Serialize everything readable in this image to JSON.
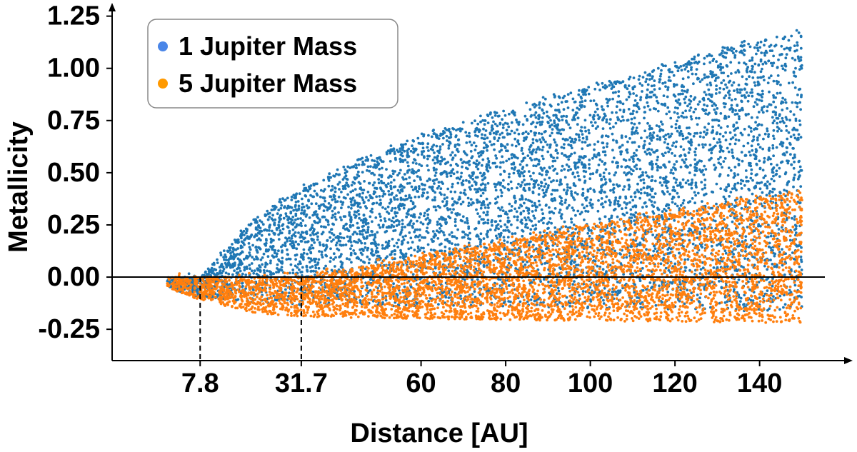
{
  "chart_data": {
    "type": "scatter",
    "title": "",
    "xlabel": "Distance [AU]",
    "ylabel": "Metallicity",
    "xlim": [
      -13,
      162
    ],
    "ylim": [
      -0.4,
      1.3
    ],
    "x_ticks": [
      {
        "value": 7.8,
        "label": "7.8"
      },
      {
        "value": 31.7,
        "label": "31.7"
      },
      {
        "value": 60,
        "label": "60"
      },
      {
        "value": 80,
        "label": "80"
      },
      {
        "value": 100,
        "label": "100"
      },
      {
        "value": 120,
        "label": "120"
      },
      {
        "value": 140,
        "label": "140"
      }
    ],
    "y_ticks": [
      {
        "value": 1.25,
        "label": "1.25"
      },
      {
        "value": 1.0,
        "label": "1.00"
      },
      {
        "value": 0.75,
        "label": "0.75"
      },
      {
        "value": 0.5,
        "label": "0.50"
      },
      {
        "value": 0.25,
        "label": "0.25"
      },
      {
        "value": 0.0,
        "label": "0.00"
      },
      {
        "value": -0.25,
        "label": "-0.25"
      }
    ],
    "reference_line_y": 0,
    "vertical_markers": [
      7.8,
      31.7
    ],
    "x_range": [
      0,
      150
    ],
    "legend": {
      "position": "top-left",
      "entries": [
        "1 Jupiter Mass",
        "5 Jupiter Mass"
      ]
    },
    "series": [
      {
        "name": "1 Jupiter Mass",
        "color": "#1f77b4",
        "legend_color": "#4a86e8",
        "zero_crossing": 7.8,
        "upper_envelope": [
          [
            0,
            0.0
          ],
          [
            7.8,
            0.0
          ],
          [
            15,
            0.15
          ],
          [
            20,
            0.27
          ],
          [
            31.7,
            0.42
          ],
          [
            40,
            0.5
          ],
          [
            60,
            0.67
          ],
          [
            80,
            0.79
          ],
          [
            100,
            0.91
          ],
          [
            120,
            1.02
          ],
          [
            140,
            1.13
          ],
          [
            150,
            1.18
          ]
        ],
        "lower_envelope": [
          [
            0,
            -0.05
          ],
          [
            7.8,
            -0.1
          ],
          [
            31.7,
            -0.14
          ],
          [
            60,
            -0.14
          ],
          [
            100,
            -0.15
          ],
          [
            150,
            -0.17
          ]
        ]
      },
      {
        "name": "5 Jupiter Mass",
        "color": "#ff7f0e",
        "legend_color": "#ff9900",
        "zero_crossing": 31.7,
        "upper_envelope": [
          [
            0,
            0.0
          ],
          [
            31.7,
            0.0
          ],
          [
            40,
            0.03
          ],
          [
            60,
            0.1
          ],
          [
            80,
            0.17
          ],
          [
            100,
            0.25
          ],
          [
            120,
            0.31
          ],
          [
            140,
            0.38
          ],
          [
            150,
            0.42
          ]
        ],
        "lower_envelope": [
          [
            0,
            -0.05
          ],
          [
            7.8,
            -0.11
          ],
          [
            20,
            -0.17
          ],
          [
            31.7,
            -0.19
          ],
          [
            60,
            -0.2
          ],
          [
            100,
            -0.21
          ],
          [
            150,
            -0.22
          ]
        ]
      }
    ]
  }
}
